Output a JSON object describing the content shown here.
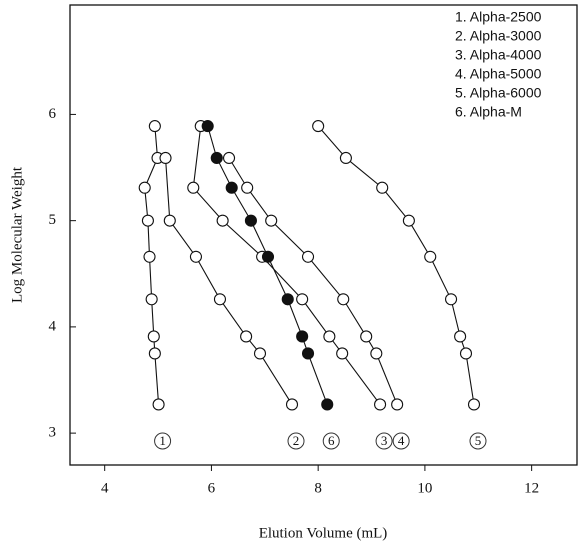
{
  "chart_data": {
    "type": "line",
    "xlabel": "Elution Volume (mL)",
    "ylabel": "Log Molecular Weight",
    "xlim": [
      3.35,
      12.85
    ],
    "ylim": [
      2.7,
      7.03
    ],
    "xticks": [
      4,
      6,
      8,
      10,
      12
    ],
    "yticks": [
      3,
      4,
      5,
      6
    ],
    "legend": "upper right",
    "series": [
      {
        "name": "1. Alpha-2500",
        "label": "1",
        "color": "#111111",
        "marker_fill": "#ffffff",
        "x": [
          4.94,
          4.99,
          4.75,
          4.81,
          4.84,
          4.88,
          4.92,
          4.94,
          5.01
        ],
        "values": [
          5.89,
          5.59,
          5.31,
          5.0,
          4.66,
          4.26,
          3.91,
          3.75,
          3.27
        ]
      },
      {
        "name": "2. Alpha-3000",
        "label": "2",
        "color": "#111111",
        "marker_fill": "#ffffff",
        "x": [
          5.14,
          5.22,
          5.71,
          6.16,
          6.65,
          6.91,
          7.51
        ],
        "values": [
          5.59,
          5.0,
          4.66,
          4.26,
          3.91,
          3.75,
          3.27
        ]
      },
      {
        "name": "3. Alpha-4000",
        "label": "3",
        "color": "#111111",
        "marker_fill": "#ffffff",
        "x": [
          5.8,
          5.66,
          6.21,
          6.95,
          7.7,
          8.21,
          8.45,
          9.16
        ],
        "values": [
          5.89,
          5.31,
          5.0,
          4.66,
          4.26,
          3.91,
          3.75,
          3.27
        ]
      },
      {
        "name": "4. Alpha-5000",
        "label": "4",
        "color": "#111111",
        "marker_fill": "#ffffff",
        "x": [
          6.33,
          6.67,
          7.12,
          7.81,
          8.47,
          8.9,
          9.09,
          9.48
        ],
        "values": [
          5.59,
          5.31,
          5.0,
          4.66,
          4.26,
          3.91,
          3.75,
          3.27
        ]
      },
      {
        "name": "5. Alpha-6000",
        "label": "5",
        "color": "#111111",
        "marker_fill": "#ffffff",
        "x": [
          8.0,
          8.52,
          9.2,
          9.7,
          10.1,
          10.49,
          10.66,
          10.77,
          10.92
        ],
        "values": [
          5.89,
          5.59,
          5.31,
          5.0,
          4.66,
          4.26,
          3.91,
          3.75,
          3.27
        ]
      },
      {
        "name": "6. Alpha-M",
        "label": "6",
        "color": "#111111",
        "marker_fill": "#111111",
        "x": [
          5.93,
          6.1,
          6.38,
          6.74,
          7.06,
          7.43,
          7.7,
          7.81,
          8.17
        ],
        "values": [
          5.89,
          5.59,
          5.31,
          5.0,
          4.66,
          4.26,
          3.91,
          3.75,
          3.27
        ]
      }
    ]
  }
}
